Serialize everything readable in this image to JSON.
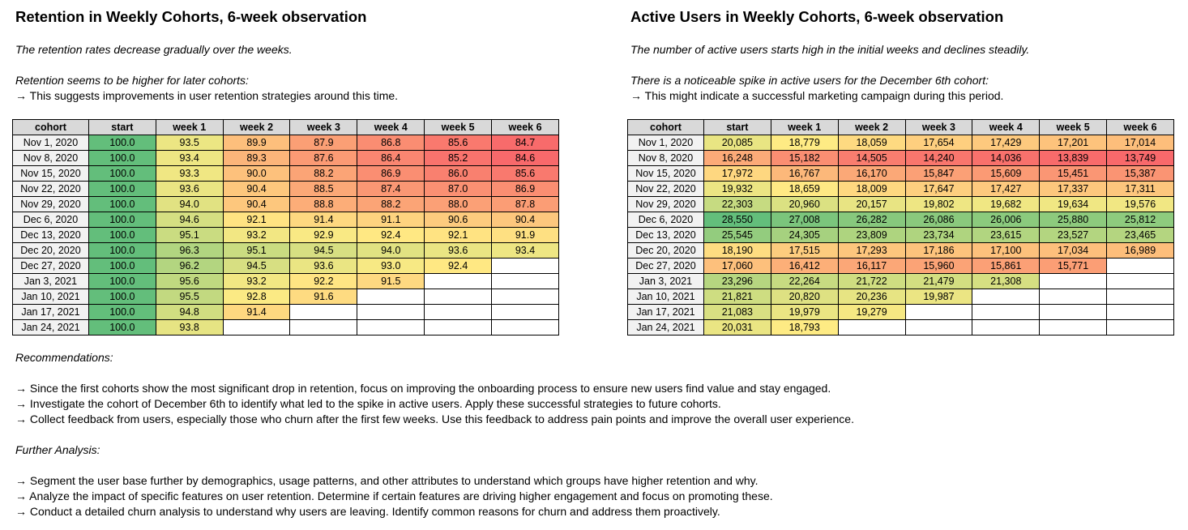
{
  "left": {
    "title": "Retention in Weekly Cohorts, 6-week observation",
    "note1": "The retention rates decrease gradually over the weeks.",
    "note2": "Retention seems to be higher for later cohorts:",
    "note3": "→ This suggests improvements in user retention strategies around this time."
  },
  "right": {
    "title": "Active Users in Weekly Cohorts, 6-week observation",
    "note1": "The number of active users starts high in the initial weeks and declines steadily.",
    "note2": "There is a noticeable spike in active users for the December 6th cohort:",
    "note3": "→ This might indicate a successful marketing campaign during this period."
  },
  "bottom": {
    "recommendations_heading": "Recommendations:",
    "recommendations": [
      "→ Since the first cohorts show the most significant drop in retention, focus on improving the onboarding process to ensure new users find value and stay engaged.",
      "→ Investigate the cohort of December 6th to identify what led to the spike in active users. Apply these successful strategies to future cohorts.",
      "→ Collect feedback from users, especially those who churn after the first few weeks. Use this feedback to address pain points and improve the overall user experience."
    ],
    "further_heading": "Further Analysis:",
    "further": [
      "→ Segment the user base further by demographics, usage patterns, and other attributes to understand which groups have higher retention and why.",
      "→ Analyze the impact of specific features on user retention. Determine if certain features are driving higher engagement and focus on promoting these.",
      "→ Conduct a detailed churn analysis to understand why users are leaving. Identify common reasons for churn and address them proactively."
    ]
  },
  "chart_data": [
    {
      "type": "heatmap",
      "title": "Retention in Weekly Cohorts, 6-week observation",
      "columns": [
        "cohort",
        "start",
        "week 1",
        "week 2",
        "week 3",
        "week 4",
        "week 5",
        "week 6"
      ],
      "rows": [
        {
          "cohort": "Nov 1, 2020",
          "values": [
            "100.0",
            "93.5",
            "89.9",
            "87.9",
            "86.8",
            "85.6",
            "84.7"
          ]
        },
        {
          "cohort": "Nov 8, 2020",
          "values": [
            "100.0",
            "93.4",
            "89.3",
            "87.6",
            "86.4",
            "85.2",
            "84.6"
          ]
        },
        {
          "cohort": "Nov 15, 2020",
          "values": [
            "100.0",
            "93.3",
            "90.0",
            "88.2",
            "86.9",
            "86.0",
            "85.6"
          ]
        },
        {
          "cohort": "Nov 22, 2020",
          "values": [
            "100.0",
            "93.6",
            "90.4",
            "88.5",
            "87.4",
            "87.0",
            "86.9"
          ]
        },
        {
          "cohort": "Nov 29, 2020",
          "values": [
            "100.0",
            "94.0",
            "90.4",
            "88.8",
            "88.2",
            "88.0",
            "87.8"
          ]
        },
        {
          "cohort": "Dec 6, 2020",
          "values": [
            "100.0",
            "94.6",
            "92.1",
            "91.4",
            "91.1",
            "90.6",
            "90.4"
          ]
        },
        {
          "cohort": "Dec 13, 2020",
          "values": [
            "100.0",
            "95.1",
            "93.2",
            "92.9",
            "92.4",
            "92.1",
            "91.9"
          ]
        },
        {
          "cohort": "Dec 20, 2020",
          "values": [
            "100.0",
            "96.3",
            "95.1",
            "94.5",
            "94.0",
            "93.6",
            "93.4"
          ]
        },
        {
          "cohort": "Dec 27, 2020",
          "values": [
            "100.0",
            "96.2",
            "94.5",
            "93.6",
            "93.0",
            "92.4",
            null
          ]
        },
        {
          "cohort": "Jan 3, 2021",
          "values": [
            "100.0",
            "95.6",
            "93.2",
            "92.2",
            "91.5",
            null,
            null
          ]
        },
        {
          "cohort": "Jan 10, 2021",
          "values": [
            "100.0",
            "95.5",
            "92.8",
            "91.6",
            null,
            null,
            null
          ]
        },
        {
          "cohort": "Jan 17, 2021",
          "values": [
            "100.0",
            "94.8",
            "91.4",
            null,
            null,
            null,
            null
          ]
        },
        {
          "cohort": "Jan 24, 2021",
          "values": [
            "100.0",
            "93.8",
            null,
            null,
            null,
            null,
            null
          ]
        }
      ]
    },
    {
      "type": "heatmap",
      "title": "Active Users in Weekly Cohorts, 6-week observation",
      "columns": [
        "cohort",
        "start",
        "week 1",
        "week 2",
        "week 3",
        "week 4",
        "week 5",
        "week 6"
      ],
      "rows": [
        {
          "cohort": "Nov 1, 2020",
          "values": [
            "20,085",
            "18,779",
            "18,059",
            "17,654",
            "17,429",
            "17,201",
            "17,014"
          ]
        },
        {
          "cohort": "Nov 8, 2020",
          "values": [
            "16,248",
            "15,182",
            "14,505",
            "14,240",
            "14,036",
            "13,839",
            "13,749"
          ]
        },
        {
          "cohort": "Nov 15, 2020",
          "values": [
            "17,972",
            "16,767",
            "16,170",
            "15,847",
            "15,609",
            "15,451",
            "15,387"
          ]
        },
        {
          "cohort": "Nov 22, 2020",
          "values": [
            "19,932",
            "18,659",
            "18,009",
            "17,647",
            "17,427",
            "17,337",
            "17,311"
          ]
        },
        {
          "cohort": "Nov 29, 2020",
          "values": [
            "22,303",
            "20,960",
            "20,157",
            "19,802",
            "19,682",
            "19,634",
            "19,576"
          ]
        },
        {
          "cohort": "Dec 6, 2020",
          "values": [
            "28,550",
            "27,008",
            "26,282",
            "26,086",
            "26,006",
            "25,880",
            "25,812"
          ]
        },
        {
          "cohort": "Dec 13, 2020",
          "values": [
            "25,545",
            "24,305",
            "23,809",
            "23,734",
            "23,615",
            "23,527",
            "23,465"
          ]
        },
        {
          "cohort": "Dec 20, 2020",
          "values": [
            "18,190",
            "17,515",
            "17,293",
            "17,186",
            "17,100",
            "17,034",
            "16,989"
          ]
        },
        {
          "cohort": "Dec 27, 2020",
          "values": [
            "17,060",
            "16,412",
            "16,117",
            "15,960",
            "15,861",
            "15,771",
            null
          ]
        },
        {
          "cohort": "Jan 3, 2021",
          "values": [
            "23,296",
            "22,264",
            "21,722",
            "21,479",
            "21,308",
            null,
            null
          ]
        },
        {
          "cohort": "Jan 10, 2021",
          "values": [
            "21,821",
            "20,820",
            "20,236",
            "19,987",
            null,
            null,
            null
          ]
        },
        {
          "cohort": "Jan 17, 2021",
          "values": [
            "21,083",
            "19,979",
            "19,279",
            null,
            null,
            null,
            null
          ]
        },
        {
          "cohort": "Jan 24, 2021",
          "values": [
            "20,031",
            "18,793",
            null,
            null,
            null,
            null,
            null
          ]
        }
      ]
    }
  ],
  "colors": {
    "low": "#f8696b",
    "mid": "#ffeb84",
    "high": "#63be7b",
    "header_bg": "#d9d9d9",
    "label_bg": "#f2f2f2"
  }
}
